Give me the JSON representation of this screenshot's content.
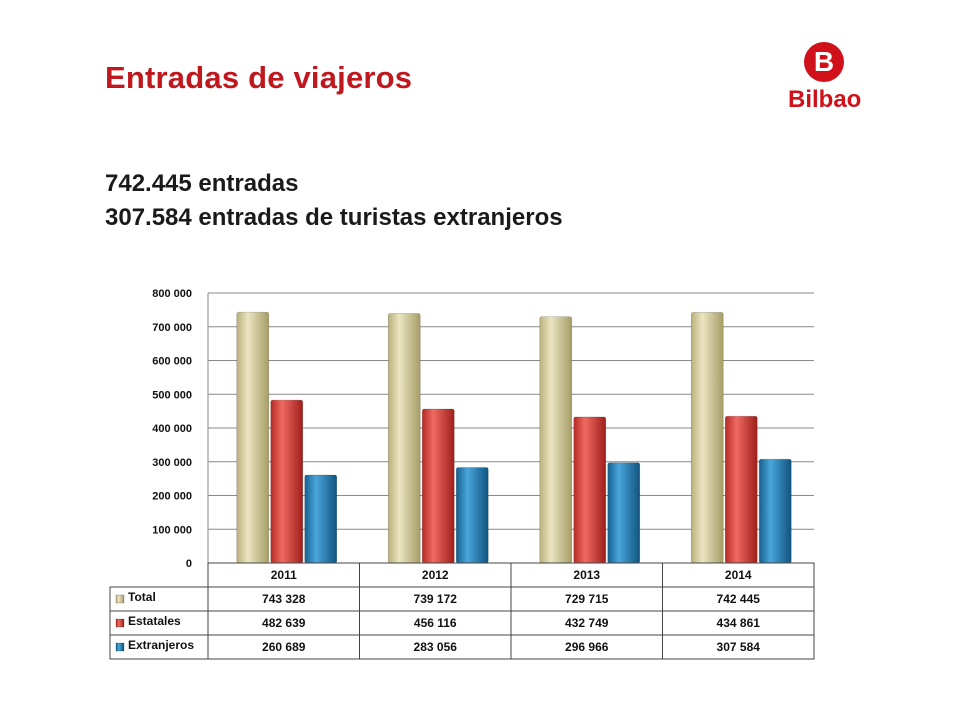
{
  "header": {
    "title": "Entradas de viajeros",
    "line1": "742.445 entradas",
    "line2": "307.584 entradas de turistas extranjeros"
  },
  "logo": {
    "letter": "B",
    "word": "Bilbao",
    "color": "#d0111a"
  },
  "chart_data": {
    "type": "bar",
    "categories": [
      "2011",
      "2012",
      "2013",
      "2014"
    ],
    "series": [
      {
        "name": "Total",
        "color": "#d4cc9a",
        "values": [
          743328,
          739172,
          729715,
          742445
        ],
        "labels": [
          "743 328",
          "739 172",
          "729 715",
          "742 445"
        ]
      },
      {
        "name": "Estatales",
        "color": "#d63c36",
        "values": [
          482639,
          456116,
          432749,
          434861
        ],
        "labels": [
          "482 639",
          "456 116",
          "432 749",
          "434 861"
        ]
      },
      {
        "name": "Extranjeros",
        "color": "#1f7db8",
        "values": [
          260689,
          283056,
          296966,
          307584
        ],
        "labels": [
          "260 689",
          "283 056",
          "296 966",
          "307 584"
        ]
      }
    ],
    "ylim": [
      0,
      800000
    ],
    "yticks": [
      {
        "value": 0,
        "label": "0"
      },
      {
        "value": 100000,
        "label": "100 000"
      },
      {
        "value": 200000,
        "label": "200 000"
      },
      {
        "value": 300000,
        "label": "300 000"
      },
      {
        "value": 400000,
        "label": "400 000"
      },
      {
        "value": 500000,
        "label": "500 000"
      },
      {
        "value": 600000,
        "label": "600 000"
      },
      {
        "value": 700000,
        "label": "700 000"
      },
      {
        "value": 800000,
        "label": "800 000"
      }
    ],
    "grid": true,
    "legend": "data-table"
  }
}
